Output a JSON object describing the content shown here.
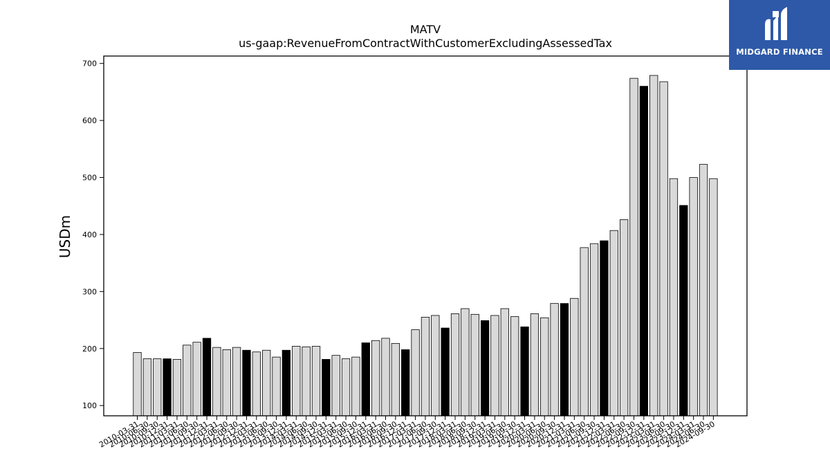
{
  "logo": {
    "text": "MIDGARD FINANCE",
    "color": "#2d59a8"
  },
  "chart_data": {
    "type": "bar",
    "title": "MATV",
    "subtitle": "us-gaap:RevenueFromContractWithCustomerExcludingAssessedTax",
    "ylabel": "USDm",
    "xlabel": "",
    "ylim": [
      82,
      713
    ],
    "yticks": [
      100,
      200,
      300,
      400,
      500,
      600,
      700
    ],
    "grid": false,
    "colors": {
      "quarter": "#d9d9d9",
      "annual": "#000000",
      "edge": "#000000"
    },
    "categories": [
      "2010-03-31",
      "2010-06-30",
      "2010-09-30",
      "2010-12-31",
      "2011-03-31",
      "2011-06-30",
      "2011-09-30",
      "2011-12-31",
      "2012-03-31",
      "2012-06-30",
      "2012-09-30",
      "2012-12-31",
      "2013-03-31",
      "2013-06-30",
      "2013-09-30",
      "2013-12-31",
      "2014-03-31",
      "2014-06-30",
      "2014-09-30",
      "2014-12-31",
      "2015-03-31",
      "2015-06-30",
      "2015-09-30",
      "2015-12-31",
      "2016-03-31",
      "2016-06-30",
      "2016-09-30",
      "2016-12-31",
      "2017-03-31",
      "2017-06-30",
      "2017-09-30",
      "2017-12-31",
      "2018-03-31",
      "2018-06-30",
      "2018-09-30",
      "2018-12-31",
      "2019-03-31",
      "2019-06-30",
      "2019-09-30",
      "2019-12-31",
      "2020-03-31",
      "2020-06-30",
      "2020-09-30",
      "2020-12-31",
      "2021-03-31",
      "2021-06-30",
      "2021-09-30",
      "2021-12-31",
      "2022-03-31",
      "2022-06-30",
      "2022-09-30",
      "2022-12-31",
      "2023-03-31",
      "2023-06-30",
      "2023-09-30",
      "2023-12-31",
      "2024-03-31",
      "2024-06-30",
      "2024-09-30"
    ],
    "values": [
      193,
      182,
      182,
      182,
      181,
      206,
      211,
      218,
      202,
      198,
      202,
      197,
      194,
      197,
      185,
      197,
      204,
      203,
      204,
      181,
      188,
      182,
      185,
      210,
      214,
      218,
      209,
      198,
      233,
      255,
      258,
      236,
      261,
      270,
      260,
      249,
      258,
      270,
      256,
      238,
      261,
      254,
      279,
      279,
      288,
      377,
      384,
      389,
      407,
      426,
      674,
      660,
      679,
      668,
      498,
      451,
      500,
      523,
      498
    ],
    "highlighted": [
      3,
      7,
      11,
      15,
      19,
      23,
      27,
      31,
      35,
      39,
      43,
      47,
      51,
      55
    ]
  }
}
